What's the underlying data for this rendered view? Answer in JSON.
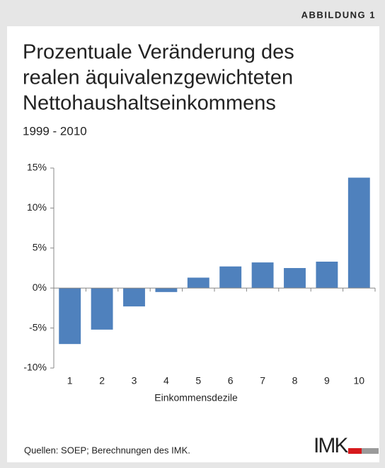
{
  "header": "ABBILDUNG 1",
  "chart_data": {
    "type": "bar",
    "title": [
      "Prozentuale Veränderung des",
      "realen äquivalenzgewichteten",
      "Nettohaushaltseinkommens"
    ],
    "subtitle": "1999 - 2010",
    "x_label": "Einkommensdezile",
    "categories": [
      "1",
      "2",
      "3",
      "4",
      "5",
      "6",
      "7",
      "8",
      "9",
      "10"
    ],
    "values": [
      -7.0,
      -5.2,
      -2.3,
      -0.5,
      1.3,
      2.7,
      3.2,
      2.5,
      3.3,
      13.8
    ],
    "color": "#4f81bd",
    "ylim": [
      -10,
      15
    ],
    "yticks": [
      {
        "value": -10,
        "label": "-10%"
      },
      {
        "value": -5,
        "label": "-5%"
      },
      {
        "value": 0,
        "label": "0%"
      },
      {
        "value": 5,
        "label": "5%"
      },
      {
        "value": 10,
        "label": "10%"
      },
      {
        "value": 15,
        "label": "15%"
      }
    ],
    "grid": false
  },
  "footer": {
    "source": "Quellen: SOEP; Berechnungen des IMK.",
    "logo": "IMK"
  }
}
